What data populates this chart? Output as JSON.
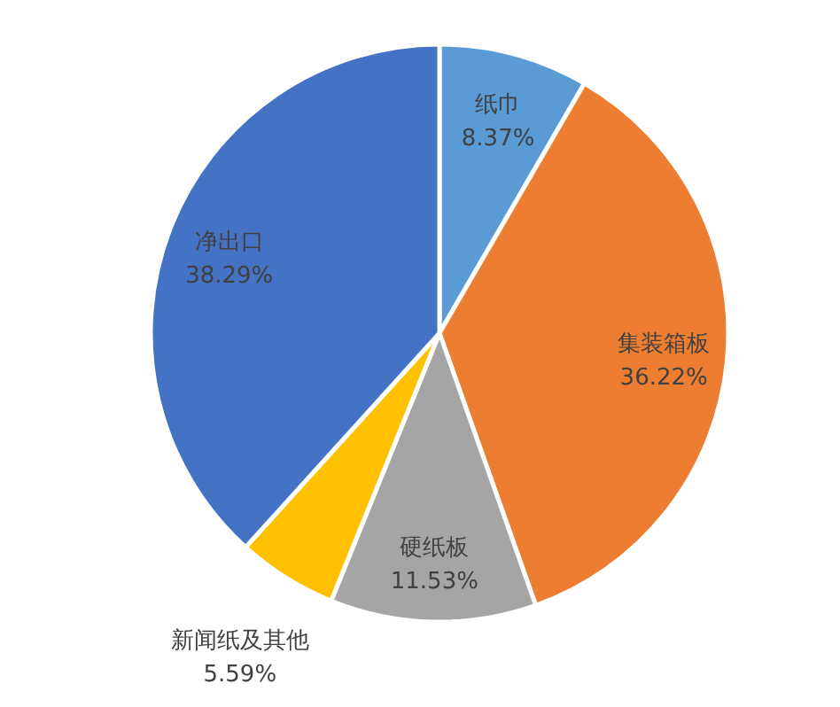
{
  "chart_data": {
    "type": "pie",
    "categories": [
      "纸巾",
      "集装箱板",
      "硬纸板",
      "新闻纸及其他",
      "净出口"
    ],
    "values": [
      8.37,
      36.22,
      11.53,
      5.59,
      38.29
    ],
    "value_labels": [
      "8.37%",
      "36.22%",
      "11.53%",
      "5.59%",
      "38.29%"
    ],
    "colors": [
      "#5b9bd5",
      "#ed7d31",
      "#a5a5a5",
      "#ffc000",
      "#4472c4"
    ]
  }
}
